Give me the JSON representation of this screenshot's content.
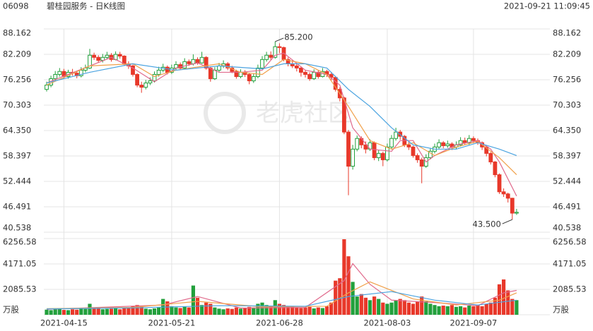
{
  "header": {
    "code": "06098",
    "name": "碧桂园服务 - 日K线图",
    "time": "2021-09-21 11:09:45",
    "watermark": "老虎社区"
  },
  "chart_data": {
    "type": "candlestick",
    "up_color": "#22a03c",
    "down_color": "#e8382a",
    "x_labels": [
      {
        "index": 4,
        "label": "2021-04-15"
      },
      {
        "index": 29,
        "label": "2021-05-21"
      },
      {
        "index": 54,
        "label": "2021-06-28"
      },
      {
        "index": 79,
        "label": "2021-08-03"
      },
      {
        "index": 99,
        "label": "2021-09-07"
      }
    ],
    "ylim": [
      40.538,
      88.162
    ],
    "yticks": [
      88.162,
      82.209,
      76.256,
      70.303,
      {
        "value": 64.35,
        "label": "64.350"
      },
      58.397,
      52.444,
      46.491,
      40.538
    ],
    "vol_ylim": [
      0,
      6256.58
    ],
    "vol_yticks": [
      6256.58,
      4171.05,
      2085.53,
      {
        "value": 0,
        "label": "万股"
      }
    ],
    "grid": true,
    "open": [
      74.0,
      75.0,
      76.5,
      77.5,
      78.2,
      77.0,
      78.0,
      77.8,
      77.2,
      78.5,
      79.0,
      82.0,
      81.5,
      80.8,
      81.5,
      82.0,
      81.0,
      82.2,
      81.8,
      80.0,
      79.5,
      77.5,
      75.0,
      74.5,
      75.5,
      76.0,
      77.5,
      78.5,
      79.2,
      78.0,
      79.0,
      79.8,
      79.0,
      80.5,
      80.0,
      81.0,
      80.2,
      81.5,
      79.0,
      76.5,
      78.5,
      79.5,
      80.0,
      79.0,
      78.2,
      77.0,
      78.0,
      77.5,
      76.0,
      77.0,
      79.0,
      81.0,
      82.0,
      81.5,
      84.0,
      83.8,
      81.0,
      80.0,
      79.5,
      79.0,
      78.0,
      77.5,
      76.5,
      78.0,
      77.0,
      78.2,
      77.5,
      76.8,
      74.0,
      72.0,
      64.0,
      56.0,
      60.0,
      62.5,
      61.0,
      60.0,
      61.5,
      58.0,
      59.0,
      57.5,
      60.5,
      62.5,
      64.0,
      63.0,
      61.0,
      60.5,
      58.5,
      57.5,
      56.0,
      58.0,
      59.5,
      60.5,
      61.5,
      60.8,
      61.2,
      60.5,
      61.0,
      62.0,
      61.5,
      62.5,
      62.0,
      61.5,
      60.5,
      59.0,
      57.0,
      54.0,
      50.0,
      49.5,
      48.5,
      45.0
    ],
    "high": [
      75.8,
      77.2,
      78.3,
      79.0,
      78.8,
      78.6,
      78.8,
      78.3,
      79.2,
      79.8,
      83.5,
      82.6,
      82.0,
      82.3,
      82.8,
      82.5,
      82.9,
      82.8,
      82.0,
      80.6,
      79.8,
      77.8,
      75.8,
      76.2,
      76.8,
      78.2,
      79.3,
      80.0,
      79.6,
      79.8,
      80.6,
      80.3,
      81.3,
      81.0,
      82.2,
      81.5,
      82.8,
      81.8,
      79.3,
      79.2,
      80.2,
      80.8,
      80.4,
      79.5,
      78.6,
      78.7,
      78.5,
      77.8,
      77.8,
      79.8,
      81.8,
      82.8,
      82.9,
      85.2,
      84.8,
      84.0,
      81.5,
      80.8,
      80.2,
      79.4,
      78.6,
      78.0,
      78.7,
      78.5,
      79.0,
      78.6,
      77.9,
      77.0,
      74.5,
      72.3,
      64.5,
      61.0,
      63.2,
      63.0,
      61.8,
      62.3,
      61.8,
      59.8,
      59.4,
      61.3,
      63.3,
      65.0,
      64.5,
      63.3,
      61.8,
      60.8,
      59.0,
      58.0,
      58.8,
      60.3,
      61.3,
      62.3,
      61.9,
      62.0,
      61.6,
      61.8,
      62.8,
      62.7,
      63.3,
      63.0,
      62.5,
      61.8,
      60.8,
      59.3,
      57.2,
      54.3,
      50.8,
      49.8,
      48.6,
      46.0
    ],
    "low": [
      73.5,
      74.5,
      76.0,
      77.0,
      76.5,
      76.5,
      77.2,
      76.6,
      76.8,
      78.0,
      78.8,
      80.9,
      80.2,
      80.3,
      81.0,
      80.5,
      80.8,
      81.2,
      79.5,
      78.8,
      77.0,
      74.5,
      73.2,
      74.0,
      75.0,
      75.6,
      77.0,
      78.0,
      77.5,
      77.6,
      78.6,
      78.5,
      78.7,
      79.5,
      79.6,
      79.8,
      80.0,
      78.6,
      75.8,
      76.2,
      78.0,
      79.0,
      78.5,
      77.8,
      76.5,
      76.6,
      76.9,
      75.2,
      75.5,
      76.6,
      78.7,
      80.5,
      80.8,
      81.2,
      82.5,
      80.6,
      79.4,
      79.0,
      78.2,
      77.0,
      76.8,
      76.0,
      76.2,
      76.5,
      76.8,
      76.9,
      76.0,
      73.5,
      71.2,
      63.5,
      49.2,
      55.2,
      59.5,
      60.2,
      59.0,
      59.6,
      57.4,
      57.2,
      56.0,
      57.1,
      60.0,
      62.0,
      62.2,
      60.5,
      59.8,
      58.0,
      56.8,
      52.0,
      55.6,
      57.6,
      59.0,
      60.0,
      60.2,
      60.3,
      59.8,
      60.0,
      60.6,
      61.0,
      61.0,
      61.4,
      61.0,
      59.8,
      58.3,
      56.4,
      53.4,
      49.5,
      48.8,
      47.5,
      43.5,
      44.6
    ],
    "close": [
      75.0,
      76.5,
      77.5,
      78.2,
      77.0,
      78.0,
      77.8,
      77.2,
      78.5,
      79.0,
      82.0,
      81.5,
      80.8,
      81.5,
      82.0,
      81.0,
      82.2,
      81.8,
      80.0,
      79.5,
      77.5,
      75.0,
      74.5,
      75.5,
      76.0,
      77.5,
      78.5,
      79.2,
      78.0,
      79.0,
      79.8,
      79.0,
      80.5,
      80.0,
      81.0,
      80.2,
      81.5,
      79.0,
      76.5,
      78.5,
      79.5,
      80.0,
      79.0,
      78.2,
      77.0,
      78.0,
      77.5,
      76.0,
      77.0,
      79.0,
      81.0,
      82.0,
      81.5,
      84.0,
      83.8,
      81.0,
      80.0,
      79.5,
      79.0,
      78.0,
      77.5,
      76.5,
      78.0,
      77.0,
      78.2,
      77.5,
      76.8,
      74.0,
      72.0,
      64.0,
      56.0,
      60.0,
      62.5,
      61.0,
      60.0,
      61.5,
      58.0,
      59.0,
      57.5,
      60.5,
      62.5,
      64.0,
      63.0,
      61.0,
      60.5,
      58.5,
      57.5,
      56.0,
      58.0,
      59.5,
      60.5,
      61.5,
      60.8,
      61.2,
      60.5,
      61.0,
      62.0,
      61.5,
      62.5,
      62.0,
      61.5,
      60.5,
      59.0,
      57.0,
      54.0,
      50.0,
      49.5,
      48.5,
      45.0,
      45.2
    ],
    "volume": [
      420,
      380,
      450,
      520,
      400,
      380,
      450,
      420,
      500,
      480,
      900,
      600,
      520,
      450,
      480,
      500,
      520,
      450,
      600,
      550,
      700,
      800,
      650,
      500,
      450,
      520,
      600,
      1300,
      1100,
      700,
      600,
      550,
      650,
      600,
      2400,
      1400,
      800,
      1000,
      900,
      600,
      500,
      450,
      520,
      480,
      600,
      500,
      550,
      650,
      600,
      900,
      1000,
      800,
      700,
      1200,
      900,
      800,
      650,
      700,
      600,
      550,
      600,
      650,
      520,
      600,
      550,
      700,
      1000,
      2800,
      3000,
      6200,
      4800,
      2700,
      1500,
      1700,
      1400,
      1200,
      1500,
      1300,
      1000,
      900,
      1000,
      1200,
      1300,
      1200,
      1000,
      900,
      1100,
      1500,
      1100,
      900,
      800,
      700,
      750,
      700,
      800,
      650,
      700,
      600,
      750,
      700,
      800,
      700,
      900,
      1000,
      1400,
      2500,
      2900,
      2000,
      1300,
      1200
    ],
    "annotations": [
      {
        "index": 53,
        "label": "85.200",
        "side": "high"
      },
      {
        "index": 108,
        "label": "43.500",
        "side": "low"
      }
    ],
    "ma_lines": [
      {
        "color": "#e06a8c",
        "x": [
          0,
          5,
          10,
          15,
          20,
          25,
          30,
          35,
          40,
          45,
          50,
          53,
          55,
          60,
          65,
          68,
          71,
          75,
          80,
          82,
          85,
          88,
          90,
          95,
          100,
          103,
          105,
          109
        ],
        "values": [
          75.5,
          77.5,
          79.5,
          81.5,
          79,
          75.8,
          79,
          80.2,
          78,
          78,
          78.5,
          82,
          82.5,
          78.5,
          77.5,
          75,
          65,
          60,
          59.5,
          62,
          62,
          57,
          58.5,
          61,
          62,
          60,
          57,
          49
        ]
      },
      {
        "color": "#f0a04a",
        "x": [
          0,
          10,
          20,
          25,
          30,
          40,
          45,
          50,
          55,
          60,
          65,
          70,
          75,
          80,
          85,
          90,
          95,
          100,
          105,
          109
        ],
        "values": [
          75,
          79.5,
          80,
          77,
          78.5,
          80,
          78,
          77.5,
          81,
          80,
          77.5,
          70,
          62,
          60,
          61.5,
          58.5,
          60.5,
          61.8,
          58,
          54
        ]
      },
      {
        "color": "#4aa3e0",
        "x": [
          0,
          10,
          20,
          30,
          40,
          50,
          55,
          60,
          65,
          70,
          75,
          80,
          85,
          90,
          95,
          100,
          105,
          109
        ],
        "values": [
          75.5,
          78,
          80,
          78.5,
          79.5,
          78.8,
          80,
          80,
          79,
          74,
          70,
          65,
          61,
          60,
          60,
          61.5,
          60,
          58.5
        ]
      }
    ],
    "vol_ma_lines": [
      {
        "color": "#e06a8c",
        "x": [
          0,
          27,
          35,
          45,
          60,
          69,
          71,
          75,
          80,
          90,
          100,
          106,
          109
        ],
        "values": [
          450,
          800,
          1500,
          550,
          600,
          2800,
          4200,
          2500,
          1200,
          1000,
          750,
          1800,
          2000
        ]
      },
      {
        "color": "#f0a04a",
        "x": [
          0,
          20,
          35,
          50,
          65,
          70,
          75,
          85,
          95,
          105,
          109
        ],
        "values": [
          500,
          600,
          1100,
          650,
          700,
          1800,
          2700,
          1300,
          800,
          1200,
          1800
        ]
      },
      {
        "color": "#4aa3e0",
        "x": [
          0,
          20,
          40,
          60,
          70,
          80,
          90,
          100,
          109
        ],
        "values": [
          480,
          560,
          750,
          700,
          1500,
          1900,
          1200,
          800,
          1200
        ]
      }
    ]
  }
}
